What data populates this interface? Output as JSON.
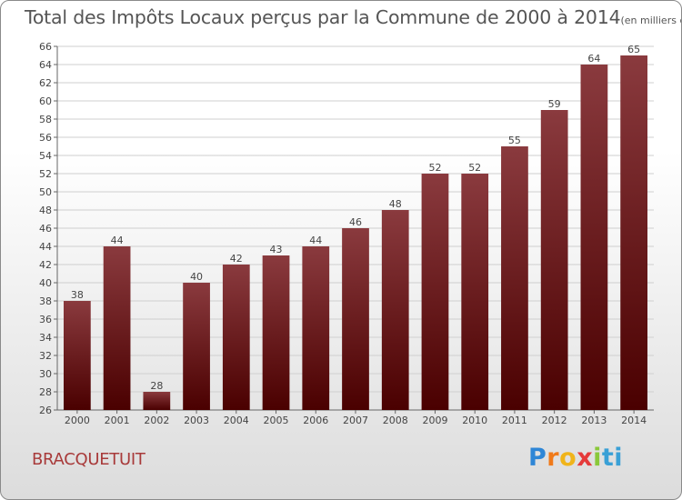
{
  "title": "Total des Impôts Locaux perçus par la Commune de 2000 à 2014",
  "title_unit": "(en milliers d'€)",
  "commune": "BRACQUETUIT",
  "logo": {
    "text": "Proxiti",
    "parts": [
      "P",
      "r",
      "o",
      "x",
      "i",
      "ti"
    ]
  },
  "colors": {
    "bar_top": "#8a3a3e",
    "bar_bottom": "#4a0000",
    "grid": "#cfcfcf"
  },
  "chart_data": {
    "type": "bar",
    "title": "Total des Impôts Locaux perçus par la Commune de 2000 à 2014",
    "xlabel": "",
    "ylabel": "",
    "ylim": [
      26,
      66
    ],
    "ytick_step": 2,
    "grid": true,
    "categories": [
      "2000",
      "2001",
      "2002",
      "2003",
      "2004",
      "2005",
      "2006",
      "2007",
      "2008",
      "2009",
      "2010",
      "2011",
      "2012",
      "2013",
      "2014"
    ],
    "values": [
      38,
      44,
      28,
      40,
      42,
      43,
      44,
      46,
      48,
      52,
      52,
      55,
      59,
      64,
      65
    ]
  }
}
